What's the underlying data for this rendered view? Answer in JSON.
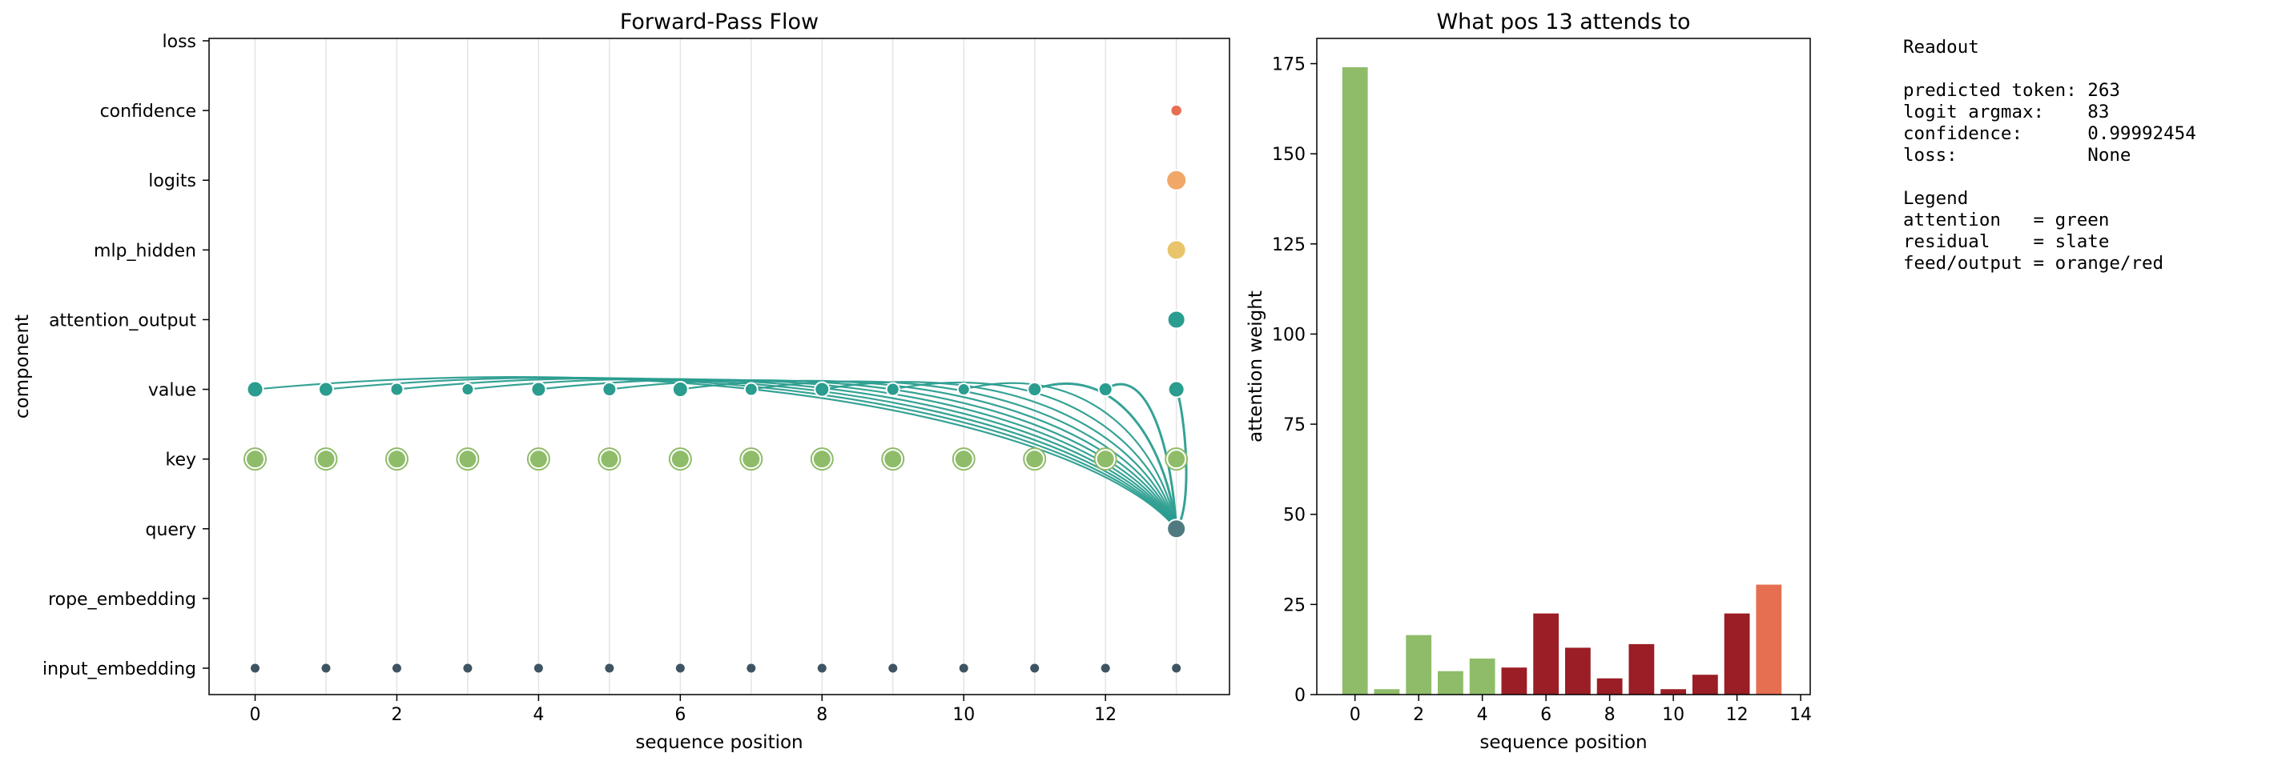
{
  "colors": {
    "attention_green": "#8fbc69",
    "attention_teal": "#2a9d8f",
    "slate": "#3e5462",
    "query_node": "#4e7a80",
    "orange": "#f0a868",
    "yellow": "#e9c46a",
    "red_dark": "#9b1d25",
    "red_light": "#e76f51"
  },
  "chart_data": [
    {
      "type": "scatter",
      "title": "Forward-Pass Flow",
      "xlabel": "sequence position",
      "ylabel": "component",
      "xlim": [
        -0.65,
        13.75
      ],
      "xticks": [
        "0",
        "2",
        "4",
        "6",
        "8",
        "10",
        "12"
      ],
      "components": [
        "loss",
        "confidence",
        "logits",
        "mlp_hidden",
        "attention_output",
        "value",
        "key",
        "query",
        "rope_embedding",
        "input_embedding"
      ],
      "grid": "vertical",
      "nodes": {
        "input_embedding": {
          "positions": [
            0,
            1,
            2,
            3,
            4,
            5,
            6,
            7,
            8,
            9,
            10,
            11,
            12,
            13
          ],
          "color": "slate"
        },
        "key": {
          "positions": [
            0,
            1,
            2,
            3,
            4,
            5,
            6,
            7,
            8,
            9,
            10,
            11,
            12,
            13
          ],
          "color": "attention_green"
        },
        "value": {
          "positions": [
            0,
            1,
            2,
            3,
            4,
            5,
            6,
            7,
            8,
            9,
            10,
            11,
            12,
            13
          ],
          "color": "attention_teal"
        },
        "query": {
          "positions": [
            13
          ],
          "color": "query_node"
        },
        "attention_output": {
          "positions": [
            13
          ],
          "color": "attention_teal"
        },
        "mlp_hidden": {
          "positions": [
            13
          ],
          "color": "yellow"
        },
        "logits": {
          "positions": [
            13
          ],
          "color": "orange"
        },
        "confidence": {
          "positions": [
            13
          ],
          "color": "red_light"
        }
      },
      "value_node_sizes": [
        10,
        9,
        8,
        7.5,
        9,
        8.5,
        9.5,
        8,
        9,
        8,
        7.5,
        8.5,
        8.5,
        10
      ],
      "arcs_from_query_to_value_positions": [
        0,
        1,
        2,
        3,
        4,
        5,
        6,
        7,
        8,
        9,
        10,
        11,
        12,
        13
      ]
    },
    {
      "type": "bar",
      "title": "What pos 13 attends to",
      "xlabel": "sequence position",
      "ylabel": "attention weight",
      "xlim": [
        -1.2,
        14.3
      ],
      "ylim": [
        0,
        182
      ],
      "xticks": [
        "0",
        "2",
        "4",
        "6",
        "8",
        "10",
        "12",
        "14"
      ],
      "yticks": [
        "0",
        "25",
        "50",
        "75",
        "100",
        "125",
        "150",
        "175"
      ],
      "categories": [
        0,
        1,
        2,
        3,
        4,
        5,
        6,
        7,
        8,
        9,
        10,
        11,
        12,
        13
      ],
      "values": [
        174,
        1.5,
        16.5,
        6.5,
        10,
        7.5,
        22.5,
        13,
        4.5,
        14,
        1.5,
        5.5,
        22.5,
        30.5
      ],
      "bar_colors": [
        "attention_green",
        "attention_green",
        "attention_green",
        "attention_green",
        "attention_green",
        "red_dark",
        "red_dark",
        "red_dark",
        "red_dark",
        "red_dark",
        "red_dark",
        "red_dark",
        "red_dark",
        "red_light"
      ]
    }
  ],
  "readout": {
    "title": "Readout",
    "predicted_token": "predicted token: 263",
    "logit_argmax": "logit argmax:    83",
    "confidence": "confidence:      0.99992454",
    "loss": "loss:            None",
    "legend_title": "Legend",
    "legend_attention": "attention   = green",
    "legend_residual": "residual    = slate",
    "legend_feed": "feed/output = orange/red"
  }
}
